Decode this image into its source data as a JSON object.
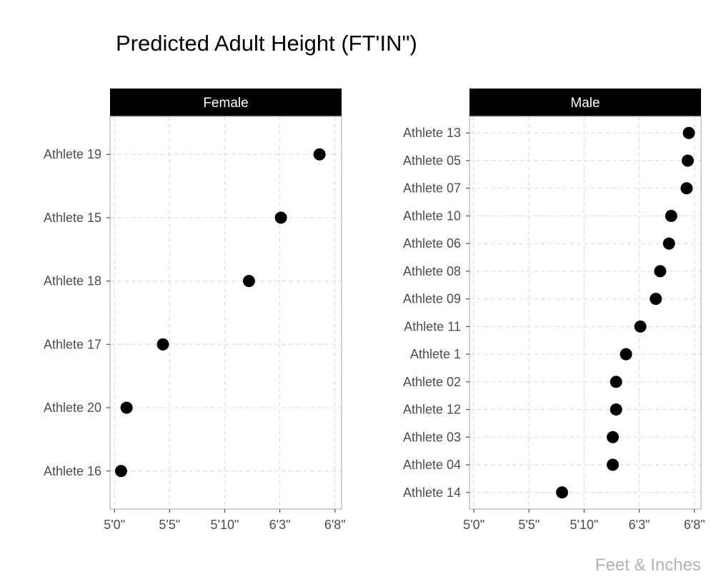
{
  "chart_data": {
    "type": "scatter",
    "title": "Predicted Adult Height (FT'IN\")",
    "caption": "Feet & Inches",
    "x_ticks": [
      {
        "value": 60,
        "label": "5'0\""
      },
      {
        "value": 65,
        "label": "5'5\""
      },
      {
        "value": 70,
        "label": "5'10\""
      },
      {
        "value": 75,
        "label": "6'3\""
      },
      {
        "value": 80,
        "label": "6'8\""
      }
    ],
    "xlim": [
      59.6,
      80.6
    ],
    "error_bar_half_width": 0.5,
    "grid": true,
    "panels": [
      {
        "name": "Female",
        "points": [
          {
            "label": "Athlete 19",
            "value": 78.6
          },
          {
            "label": "Athlete 15",
            "value": 75.1
          },
          {
            "label": "Athlete 18",
            "value": 72.2
          },
          {
            "label": "Athlete 17",
            "value": 64.4
          },
          {
            "label": "Athlete 20",
            "value": 61.1
          },
          {
            "label": "Athlete 16",
            "value": 60.6
          }
        ]
      },
      {
        "name": "Male",
        "points": [
          {
            "label": "Athlete 13",
            "value": 79.5
          },
          {
            "label": "Athlete 05",
            "value": 79.4
          },
          {
            "label": "Athlete 07",
            "value": 79.3
          },
          {
            "label": "Athlete 10",
            "value": 77.9
          },
          {
            "label": "Athlete 06",
            "value": 77.7
          },
          {
            "label": "Athlete 08",
            "value": 76.9
          },
          {
            "label": "Athlete 09",
            "value": 76.5
          },
          {
            "label": "Athlete 11",
            "value": 75.1
          },
          {
            "label": "Athlete 1",
            "value": 73.8
          },
          {
            "label": "Athlete 02",
            "value": 72.9
          },
          {
            "label": "Athlete 12",
            "value": 72.9
          },
          {
            "label": "Athlete 03",
            "value": 72.6
          },
          {
            "label": "Athlete 04",
            "value": 72.6
          },
          {
            "label": "Athlete 14",
            "value": 68.0
          }
        ]
      }
    ]
  }
}
